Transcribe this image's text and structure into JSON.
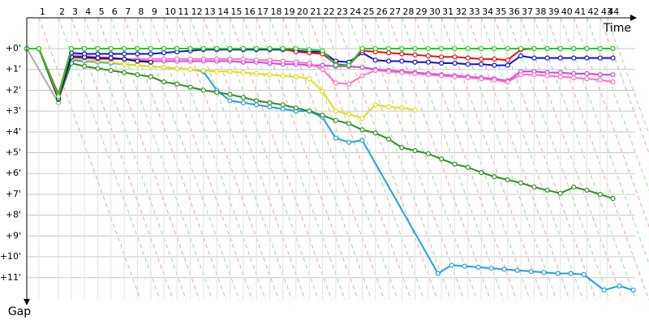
{
  "chart_data": {
    "type": "line",
    "x_label": "Time",
    "y_label": "Gap",
    "xlim": [
      0,
      29.2
    ],
    "ylim": [
      -1.48,
      12.06
    ],
    "x": [
      0,
      0.58,
      1.52,
      2.14,
      2.77,
      3.41,
      4.04,
      4.68,
      5.31,
      5.95,
      6.58,
      7.21,
      7.85,
      8.48,
      9.12,
      9.75,
      10.39,
      11.02,
      11.66,
      12.29,
      12.92,
      13.56,
      14.19,
      14.83,
      15.46,
      16.1,
      16.73,
      17.37,
      18.0,
      18.63,
      19.27,
      19.9,
      20.54,
      21.17,
      21.81,
      22.44,
      23.08,
      23.71,
      24.35,
      24.98,
      25.61,
      26.25,
      26.88,
      27.52,
      28.13
    ],
    "xticks": [
      {
        "value": 0.58,
        "label": "1"
      },
      {
        "value": 1.52,
        "label": "2"
      },
      {
        "value": 2.14,
        "label": "3"
      },
      {
        "value": 2.77,
        "label": "4"
      },
      {
        "value": 3.41,
        "label": "5"
      },
      {
        "value": 4.04,
        "label": "6"
      },
      {
        "value": 4.68,
        "label": "7"
      },
      {
        "value": 5.31,
        "label": "8"
      },
      {
        "value": 5.95,
        "label": "9"
      },
      {
        "value": 6.58,
        "label": "10"
      },
      {
        "value": 7.21,
        "label": "11"
      },
      {
        "value": 7.85,
        "label": "12"
      },
      {
        "value": 8.48,
        "label": "13"
      },
      {
        "value": 9.12,
        "label": "14"
      },
      {
        "value": 9.75,
        "label": "15"
      },
      {
        "value": 10.39,
        "label": "16"
      },
      {
        "value": 11.02,
        "label": "17"
      },
      {
        "value": 11.66,
        "label": "18"
      },
      {
        "value": 12.29,
        "label": "19"
      },
      {
        "value": 12.92,
        "label": "20"
      },
      {
        "value": 13.56,
        "label": "21"
      },
      {
        "value": 14.19,
        "label": "22"
      },
      {
        "value": 14.83,
        "label": "23"
      },
      {
        "value": 15.46,
        "label": "24"
      },
      {
        "value": 16.1,
        "label": "25"
      },
      {
        "value": 16.73,
        "label": "26"
      },
      {
        "value": 17.37,
        "label": "27"
      },
      {
        "value": 18.0,
        "label": "28"
      },
      {
        "value": 18.63,
        "label": "29"
      },
      {
        "value": 19.27,
        "label": "30"
      },
      {
        "value": 19.9,
        "label": "31"
      },
      {
        "value": 20.54,
        "label": "32"
      },
      {
        "value": 21.17,
        "label": "33"
      },
      {
        "value": 21.81,
        "label": "34"
      },
      {
        "value": 22.44,
        "label": "35"
      },
      {
        "value": 23.08,
        "label": "36"
      },
      {
        "value": 23.71,
        "label": "37"
      },
      {
        "value": 24.35,
        "label": "38"
      },
      {
        "value": 24.98,
        "label": "39"
      },
      {
        "value": 25.61,
        "label": "40"
      },
      {
        "value": 26.25,
        "label": "41"
      },
      {
        "value": 26.88,
        "label": "42"
      },
      {
        "value": 27.52,
        "label": "43"
      },
      {
        "value": 27.85,
        "label": "44"
      }
    ],
    "yticks": [
      {
        "value": 0,
        "label": "+0'"
      },
      {
        "value": 1,
        "label": "+1'"
      },
      {
        "value": 2,
        "label": "+2'"
      },
      {
        "value": 3,
        "label": "+3'"
      },
      {
        "value": 4,
        "label": "+4'"
      },
      {
        "value": 5,
        "label": "+5'"
      },
      {
        "value": 6,
        "label": "+6'"
      },
      {
        "value": 7,
        "label": "+7'"
      },
      {
        "value": 8,
        "label": "+8'"
      },
      {
        "value": 9,
        "label": "+9'"
      },
      {
        "value": 10,
        "label": "+10'"
      },
      {
        "value": 11,
        "label": "+11'"
      }
    ],
    "grid": true,
    "series": [
      {
        "color": "#aaaaaa",
        "x": [
          0,
          1.52
        ],
        "values": [
          0,
          2.6
        ]
      },
      {
        "color": "#1fa0e8",
        "x": [
          0,
          0.58,
          1.52,
          2.14,
          2.77,
          3.41,
          4.04,
          4.68,
          5.31,
          5.95,
          6.58,
          7.21,
          7.85,
          8.48,
          9.12,
          9.75,
          10.39,
          11.02,
          11.66,
          12.29,
          12.92,
          13.56,
          14.19,
          14.83,
          15.46,
          16.1,
          19.73,
          20.39,
          21.01,
          21.67,
          22.3,
          22.92,
          23.54,
          24.2,
          24.82,
          25.49,
          26.11,
          26.73,
          27.7,
          28.44,
          29.11
        ],
        "values": [
          0,
          0,
          2.4,
          0.55,
          0.6,
          0.65,
          0.7,
          0.75,
          0.8,
          0.85,
          0.9,
          0.95,
          1.0,
          1.1,
          2.0,
          2.5,
          2.6,
          2.7,
          2.8,
          2.9,
          3.0,
          3.0,
          3.3,
          4.3,
          4.5,
          4.4,
          10.8,
          10.4,
          10.45,
          10.5,
          10.55,
          10.6,
          10.65,
          10.7,
          10.75,
          10.8,
          10.8,
          10.85,
          11.6,
          11.4,
          11.6
        ]
      },
      {
        "color": "#2e9022",
        "values": [
          0,
          0,
          2.45,
          0.7,
          0.85,
          0.95,
          1.05,
          1.15,
          1.25,
          1.35,
          1.6,
          1.7,
          1.85,
          2.0,
          2.1,
          2.2,
          2.35,
          2.5,
          2.6,
          2.7,
          2.85,
          3.0,
          3.2,
          3.45,
          3.6,
          3.9,
          4.05,
          4.35,
          4.75,
          4.9,
          5.05,
          5.3,
          5.55,
          5.7,
          5.95,
          6.15,
          6.3,
          6.45,
          6.65,
          6.8,
          6.95,
          6.65,
          6.8,
          7.0,
          7.2
        ]
      },
      {
        "color": "#e0e010",
        "values": [
          0,
          0,
          2.4,
          0.45,
          0.55,
          0.6,
          0.65,
          0.75,
          0.8,
          0.85,
          0.9,
          0.95,
          1.0,
          1.05,
          1.1,
          1.1,
          1.15,
          1.2,
          1.25,
          1.3,
          1.35,
          1.45,
          2.05,
          3.0,
          3.15,
          3.35,
          2.7,
          2.8,
          2.85,
          2.95,
          null,
          null,
          null,
          null,
          null,
          null,
          null,
          null,
          null,
          null,
          null,
          null,
          null,
          null,
          null
        ]
      },
      {
        "color": "#cc44dd",
        "values": [
          0,
          0,
          2.35,
          0.4,
          0.45,
          0.5,
          0.5,
          0.5,
          0.55,
          0.6,
          0.6,
          0.6,
          0.6,
          0.6,
          0.6,
          0.6,
          0.65,
          0.65,
          0.7,
          0.75,
          0.75,
          0.8,
          0.8,
          0.85,
          0.85,
          0.9,
          1.0,
          1.05,
          1.1,
          1.15,
          1.2,
          1.25,
          1.3,
          1.35,
          1.4,
          1.45,
          1.55,
          1.1,
          1.1,
          1.15,
          1.15,
          1.2,
          1.2,
          1.25,
          1.25
        ]
      },
      {
        "color": "#ff6ec7",
        "values": [
          0,
          0,
          2.4,
          0.3,
          0.35,
          0.4,
          0.45,
          0.5,
          0.5,
          0.5,
          0.5,
          0.5,
          0.5,
          0.5,
          0.5,
          0.5,
          0.5,
          0.55,
          0.55,
          0.6,
          0.65,
          0.7,
          1.0,
          1.65,
          1.7,
          1.3,
          1.05,
          1.1,
          1.15,
          1.2,
          1.25,
          1.3,
          1.35,
          1.4,
          1.45,
          1.5,
          1.6,
          1.25,
          1.25,
          1.3,
          1.35,
          1.4,
          1.45,
          1.5,
          1.6
        ]
      },
      {
        "color": "#14145e",
        "values": [
          0,
          0,
          2.4,
          0.4,
          0.4,
          0.45,
          0.45,
          0.5,
          0.6,
          0.65,
          null,
          null,
          null,
          null,
          null,
          null,
          null,
          null,
          null,
          null,
          null,
          null,
          null,
          null,
          null,
          null,
          null,
          null,
          null,
          null,
          null,
          null,
          null,
          null,
          null,
          null,
          null,
          null,
          null,
          null,
          null,
          null,
          null,
          null,
          null
        ]
      },
      {
        "color": "#1010e0",
        "values": [
          0,
          0,
          2.25,
          0.2,
          0.25,
          0.25,
          0.25,
          0.25,
          0.25,
          0.25,
          0.2,
          0.15,
          0.1,
          0.05,
          0.05,
          0.05,
          0.05,
          0.05,
          0.05,
          0.05,
          0.1,
          0.15,
          0.15,
          0.6,
          0.65,
          0.2,
          0.55,
          0.6,
          0.6,
          0.65,
          0.65,
          0.7,
          0.7,
          0.75,
          0.75,
          0.8,
          0.8,
          0.35,
          0.45,
          0.45,
          0.45,
          0.45,
          0.45,
          0.45,
          0.45
        ]
      },
      {
        "color": "#e81010",
        "values": [
          0,
          0,
          2.2,
          0,
          0,
          0,
          0,
          0,
          0,
          0,
          0,
          0,
          0,
          0,
          0,
          0,
          0,
          0,
          0,
          0,
          0.15,
          0.2,
          0.25,
          0.75,
          0.8,
          0.1,
          0.15,
          0.2,
          0.25,
          0.3,
          0.35,
          0.4,
          0.4,
          0.45,
          0.5,
          0.5,
          0.55,
          0.05,
          0,
          0,
          0,
          0,
          0,
          0,
          0
        ]
      },
      {
        "color": "#22cc22",
        "values": [
          0,
          0,
          2.3,
          0,
          0,
          0,
          0,
          0,
          0,
          0,
          0,
          0,
          0,
          0,
          0,
          0,
          0,
          0,
          0,
          0,
          0,
          0.05,
          0.1,
          0.8,
          0.8,
          0,
          0,
          0,
          0,
          0,
          0,
          0,
          0,
          0,
          0,
          0,
          0,
          0,
          0,
          0,
          0,
          0,
          0,
          0,
          0
        ]
      }
    ]
  }
}
